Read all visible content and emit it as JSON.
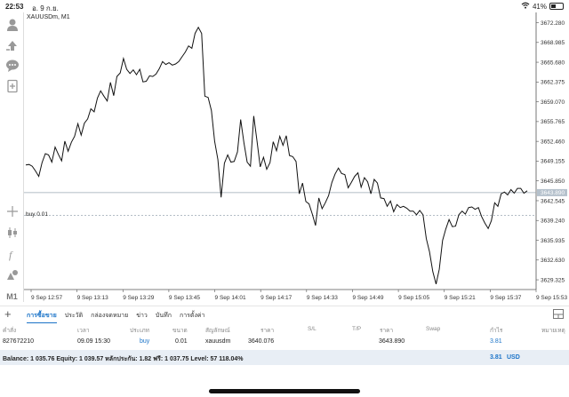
{
  "status_bar": {
    "time": "22:53",
    "date": "อ. 9 ก.ย.",
    "battery": "41%",
    "battery_level": 0.41
  },
  "chart": {
    "symbol_label": "XAUUSDm, M1",
    "order_label": "buy 0.01"
  },
  "toolbar": {
    "timeframe": "M1"
  },
  "icons": [
    "user-icon",
    "signal-icon",
    "chat-icon",
    "news-icon",
    "crosshair-icon",
    "indicators-icon",
    "function-icon",
    "objects-icon",
    "wifi-icon",
    "battery-icon",
    "add-icon",
    "panel-icon"
  ],
  "chart_data": {
    "type": "line",
    "price_ticks": [
      "3672.280",
      "3668.985",
      "3665.680",
      "3662.375",
      "3659.070",
      "3655.765",
      "3652.460",
      "3649.155",
      "3645.850",
      "3642.545",
      "3639.240",
      "3635.935",
      "3632.630",
      "3629.325"
    ],
    "time_ticks": [
      "9 Sep 12:57",
      "9 Sep 13:13",
      "9 Sep 13:29",
      "9 Sep 13:45",
      "9 Sep 14:01",
      "9 Sep 14:17",
      "9 Sep 14:33",
      "9 Sep 14:49",
      "9 Sep 15:05",
      "9 Sep 15:21",
      "9 Sep 15:37",
      "9 Sep 15:53"
    ],
    "ylim": [
      3627.7,
      3674.0
    ],
    "current_price": 3643.89,
    "current_price_label": "3643.890",
    "order_price": 3640.076,
    "values": [
      3648.5,
      3648.6,
      3648.3,
      3647.5,
      3646.6,
      3648.9,
      3650.4,
      3650.2,
      3649.0,
      3651.5,
      3650.3,
      3649.2,
      3652.5,
      3650.8,
      3652.3,
      3653.3,
      3655.4,
      3653.5,
      3655.5,
      3656.2,
      3657.9,
      3657.4,
      3659.7,
      3660.9,
      3660.0,
      3659.2,
      3662.3,
      3660.1,
      3663.3,
      3663.9,
      3666.3,
      3664.5,
      3663.8,
      3664.4,
      3663.6,
      3664.5,
      3662.4,
      3662.5,
      3663.4,
      3663.3,
      3663.7,
      3664.6,
      3665.8,
      3665.3,
      3665.6,
      3665.2,
      3665.4,
      3665.8,
      3666.6,
      3667.4,
      3668.4,
      3668.0,
      3670.5,
      3671.5,
      3670.5,
      3660.0,
      3659.8,
      3657.6,
      3652.5,
      3649.4,
      3643.1,
      3648.8,
      3650.2,
      3649.0,
      3649.1,
      3650.7,
      3656.1,
      3652.2,
      3649.0,
      3648.3,
      3656.7,
      3652.6,
      3648.2,
      3649.8,
      3647.8,
      3648.9,
      3652.4,
      3650.9,
      3653.3,
      3651.8,
      3653.4,
      3650.1,
      3649.9,
      3649.1,
      3643.7,
      3645.5,
      3642.4,
      3642.0,
      3640.3,
      3638.4,
      3643.0,
      3641.2,
      3642.2,
      3643.4,
      3645.6,
      3647.0,
      3648.0,
      3647.1,
      3646.9,
      3644.7,
      3645.6,
      3646.6,
      3647.2,
      3644.8,
      3646.4,
      3645.7,
      3643.7,
      3646.1,
      3645.5,
      3643.0,
      3642.9,
      3641.6,
      3642.5,
      3640.7,
      3641.9,
      3641.4,
      3641.6,
      3641.3,
      3640.8,
      3640.8,
      3640.2,
      3640.9,
      3640.2,
      3636.2,
      3634.0,
      3630.7,
      3628.6,
      3631.1,
      3635.9,
      3637.8,
      3639.4,
      3638.2,
      3638.3,
      3640.2,
      3640.8,
      3640.3,
      3641.4,
      3641.5,
      3641.1,
      3641.4,
      3639.9,
      3638.8,
      3637.9,
      3639.2,
      3642.2,
      3641.6,
      3643.7,
      3644.0,
      3643.5,
      3644.4,
      3643.8,
      3644.6,
      3644.6,
      3643.8,
      3644.2
    ]
  },
  "tabs": [
    {
      "label": "การซื้อขาย",
      "active": true
    },
    {
      "label": "ประวัติ",
      "active": false
    },
    {
      "label": "กล่องจดหมาย",
      "active": false
    },
    {
      "label": "ข่าว",
      "active": false
    },
    {
      "label": "บันทึก",
      "active": false
    },
    {
      "label": "การตั้งค่า",
      "active": false
    }
  ],
  "trade_table": {
    "headers": [
      "คำสั่ง",
      "เวลา",
      "ประเภท",
      "ขนาด",
      "สัญลักษณ์",
      "ราคา",
      "S/L",
      "T/P",
      "ราคา",
      "Swap",
      "กำไร",
      "หมายเหตุ"
    ],
    "row": {
      "order": "827672210",
      "time": "09.09 15:30",
      "type": "buy",
      "size": "0.01",
      "symbol": "xauusdm",
      "price": "3640.076",
      "sl": "",
      "tp": "",
      "current_price": "3643.890",
      "swap": "",
      "profit": "3.81",
      "comment": ""
    }
  },
  "balance": {
    "text": "Balance: 1 035.76 Equity: 1 039.57 หลักประกัน: 1.82 ฟรี: 1 037.75 Level: 57 118.04%",
    "profit": "3.81",
    "currency": "USD"
  },
  "colors": {
    "accent": "#1a73c8",
    "line": "#111111",
    "grid_line": "#9aa7b3",
    "price_tag_bg": "#b5c1cc"
  }
}
